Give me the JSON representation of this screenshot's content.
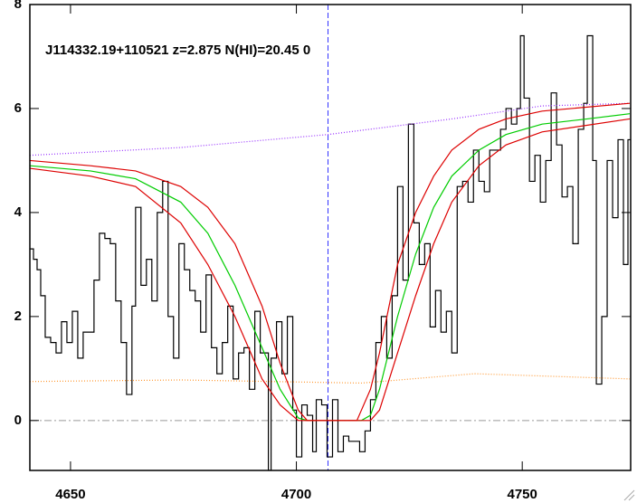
{
  "chart_data": {
    "type": "line",
    "title": "J114332.19+110521 z=2.875 N(HI)=20.45 0",
    "xlim": [
      4641,
      4774
    ],
    "ylim": [
      -0.96,
      8
    ],
    "xticks": [
      4650,
      4700,
      4750
    ],
    "yticks": [
      0,
      2,
      4,
      6,
      8
    ],
    "vline": 4707,
    "vline_color": "#3333ff",
    "hline": 0,
    "hline_color": "#999999",
    "series": [
      {
        "color": "#000000",
        "style": "step",
        "x": [
          4641.0,
          4641.8,
          4642.6,
          4643.4,
          4644.4,
          4645.6,
          4646.8,
          4648.0,
          4649.2,
          4650.4,
          4651.6,
          4652.8,
          4654.0,
          4655.2,
          4656.4,
          4657.6,
          4658.8,
          4660.0,
          4661.2,
          4662.4,
          4663.6,
          4664.4,
          4665.6,
          4666.8,
          4668.0,
          4669.2,
          4670.4,
          4671.6,
          4672.8,
          4674.0,
          4675.2,
          4676.4,
          4677.6,
          4678.8,
          4680.0,
          4681.2,
          4682.4,
          4683.6,
          4684.8,
          4686.0,
          4687.2,
          4688.4,
          4689.6,
          4690.8,
          4692.0,
          4693.2,
          4693.8,
          4694.4,
          4695.6,
          4696.8,
          4698.0,
          4699.2,
          4700.0,
          4701.2,
          4702.4,
          4703.6,
          4704.4,
          4705.6,
          4706.8,
          4708.0,
          4709.2,
          4710.4,
          4711.6,
          4712.8,
          4714.0,
          4715.2,
          4716.4,
          4717.6,
          4718.8,
          4720.0,
          4721.2,
          4722.4,
          4723.6,
          4724.8,
          4726.0,
          4727.2,
          4728.4,
          4729.6,
          4730.8,
          4732.0,
          4733.2,
          4734.4,
          4735.6,
          4736.8,
          4738.0,
          4739.2,
          4740.4,
          4741.6,
          4742.8,
          4744.0,
          4745.2,
          4746.4,
          4747.6,
          4748.8,
          4749.6,
          4750.4,
          4751.6,
          4752.8,
          4754.0,
          4755.2,
          4756.4,
          4757.6,
          4758.8,
          4760.0,
          4761.2,
          4762.4,
          4763.6,
          4764.4,
          4765.6,
          4766.4,
          4767.6,
          4768.8,
          4770.0,
          4771.2,
          4772.4,
          4773.4
        ],
        "values": [
          3.3,
          3.1,
          2.9,
          2.4,
          1.6,
          1.5,
          1.3,
          1.9,
          1.5,
          2.1,
          1.2,
          1.7,
          1.7,
          2.7,
          3.6,
          3.5,
          3.4,
          2.3,
          1.5,
          0.5,
          2.2,
          4.1,
          2.6,
          3.1,
          2.3,
          4.0,
          4.6,
          2.0,
          1.2,
          3.4,
          2.9,
          2.5,
          2.3,
          1.7,
          2.8,
          1.4,
          0.9,
          1.5,
          2.2,
          0.8,
          1.3,
          1.4,
          0.6,
          2.1,
          1.3,
          1.3,
          -0.96,
          1.2,
          1.9,
          0.9,
          2.0,
          0.2,
          -0.7,
          0.3,
          0.1,
          -0.6,
          0.4,
          0.3,
          -0.7,
          0.4,
          -0.6,
          -0.3,
          -0.4,
          -0.4,
          -0.6,
          -0.2,
          0.4,
          1.5,
          2.0,
          1.2,
          2.4,
          4.5,
          2.7,
          5.7,
          3.8,
          3.0,
          3.4,
          1.8,
          2.5,
          1.7,
          2.1,
          1.3,
          4.5,
          4.6,
          4.2,
          5.2,
          4.6,
          4.4,
          5.2,
          5.2,
          5.6,
          6.0,
          5.7,
          6.0,
          7.4,
          6.2,
          4.6,
          5.1,
          4.2,
          5.0,
          6.3,
          5.3,
          4.3,
          4.5,
          3.4,
          5.6,
          6.1,
          7.4,
          5.0,
          0.7,
          2.0,
          5.0,
          3.9,
          5.4,
          3.0,
          5.4
        ]
      },
      {
        "color": "#9933ff",
        "style": "dotted",
        "x": [
          4641,
          4674.4,
          4707,
          4734.4,
          4754.4,
          4773.8
        ],
        "values": [
          5.1,
          5.25,
          5.5,
          5.8,
          6.05,
          6.1
        ]
      },
      {
        "color": "#ff9933",
        "style": "dotted",
        "x": [
          4641,
          4674.4,
          4714.4,
          4739.4,
          4773.8
        ],
        "values": [
          0.75,
          0.78,
          0.72,
          0.9,
          0.8
        ]
      },
      {
        "color": "#00cc00",
        "style": "solid",
        "x": [
          4641,
          4654.4,
          4664.4,
          4674.4,
          4680.4,
          4686.4,
          4692.4,
          4696.4,
          4700.4,
          4702.4,
          4714.4,
          4716.4,
          4718.4,
          4722.4,
          4726.4,
          4730.4,
          4734.4,
          4740.4,
          4746.4,
          4754.4,
          4764.4,
          4773.8
        ],
        "values": [
          4.9,
          4.8,
          4.65,
          4.2,
          3.6,
          2.6,
          1.4,
          0.6,
          0.05,
          0,
          0,
          0.1,
          0.6,
          2.0,
          3.2,
          4.1,
          4.7,
          5.2,
          5.5,
          5.7,
          5.8,
          5.9
        ]
      },
      {
        "color": "#dd0000",
        "style": "solid",
        "x": [
          4641,
          4654.4,
          4664.4,
          4674.4,
          4680.4,
          4686.4,
          4692.4,
          4696.4,
          4700.4,
          4702.4,
          4713.4,
          4716.4,
          4718.4,
          4722.4,
          4726.4,
          4730.4,
          4734.4,
          4740.4,
          4746.4,
          4754.4,
          4773.8
        ],
        "values": [
          5.0,
          4.9,
          4.8,
          4.5,
          4.1,
          3.4,
          2.2,
          1.1,
          0.2,
          0,
          0,
          0.6,
          1.3,
          3.0,
          4.0,
          4.7,
          5.2,
          5.6,
          5.8,
          5.95,
          6.1
        ]
      },
      {
        "color": "#dd0000",
        "style": "solid",
        "x": [
          4641,
          4654.4,
          4664.4,
          4674.4,
          4680.4,
          4686.4,
          4692.4,
          4696.4,
          4700.4,
          4716.4,
          4718.4,
          4722.4,
          4726.4,
          4730.4,
          4734.4,
          4740.4,
          4746.4,
          4754.4,
          4773.8
        ],
        "values": [
          4.85,
          4.7,
          4.5,
          3.8,
          3.0,
          2.0,
          0.8,
          0.3,
          0,
          0,
          0.2,
          1.3,
          2.4,
          3.4,
          4.2,
          4.9,
          5.3,
          5.55,
          5.8
        ]
      }
    ]
  }
}
